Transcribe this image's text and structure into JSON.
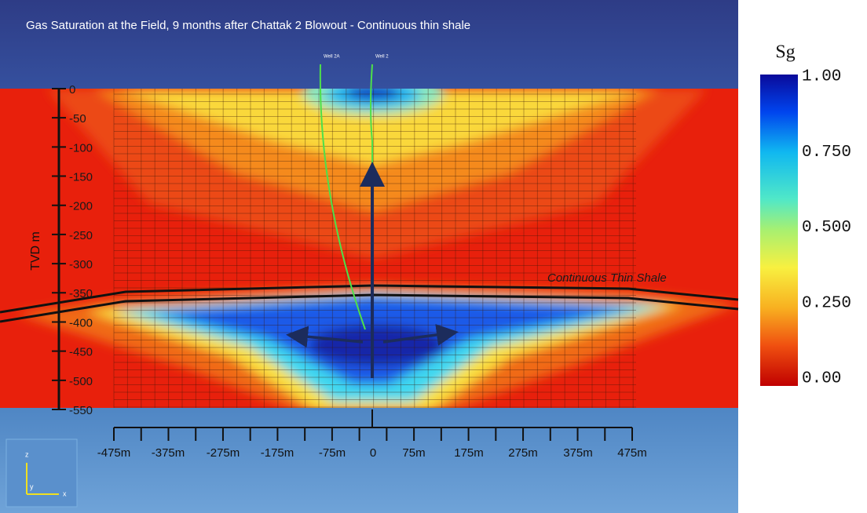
{
  "title": "Gas Saturation at the Field, 9 months after Chattak 2 Blowout - Continuous thin shale",
  "wells": [
    "Well 2A",
    "Well 2"
  ],
  "y_axis": {
    "label": "TVD m",
    "ticks": [
      "0",
      "-50",
      "-100",
      "-150",
      "-200",
      "-250",
      "-300",
      "-350",
      "-400",
      "-450",
      "-500",
      "-550"
    ]
  },
  "x_axis": {
    "ticks": [
      "-475m",
      "-375m",
      "-275m",
      "-175m",
      "-75m",
      "0",
      "75m",
      "175m",
      "275m",
      "375m",
      "475m"
    ]
  },
  "annotation": "Continuous Thin Shale",
  "colorbar": {
    "title": "Sg",
    "ticks": [
      "1.00",
      "0.750",
      "0.500",
      "0.250",
      "0.00"
    ]
  },
  "orientation": {
    "z": "z",
    "y": "y",
    "x": "x"
  }
}
